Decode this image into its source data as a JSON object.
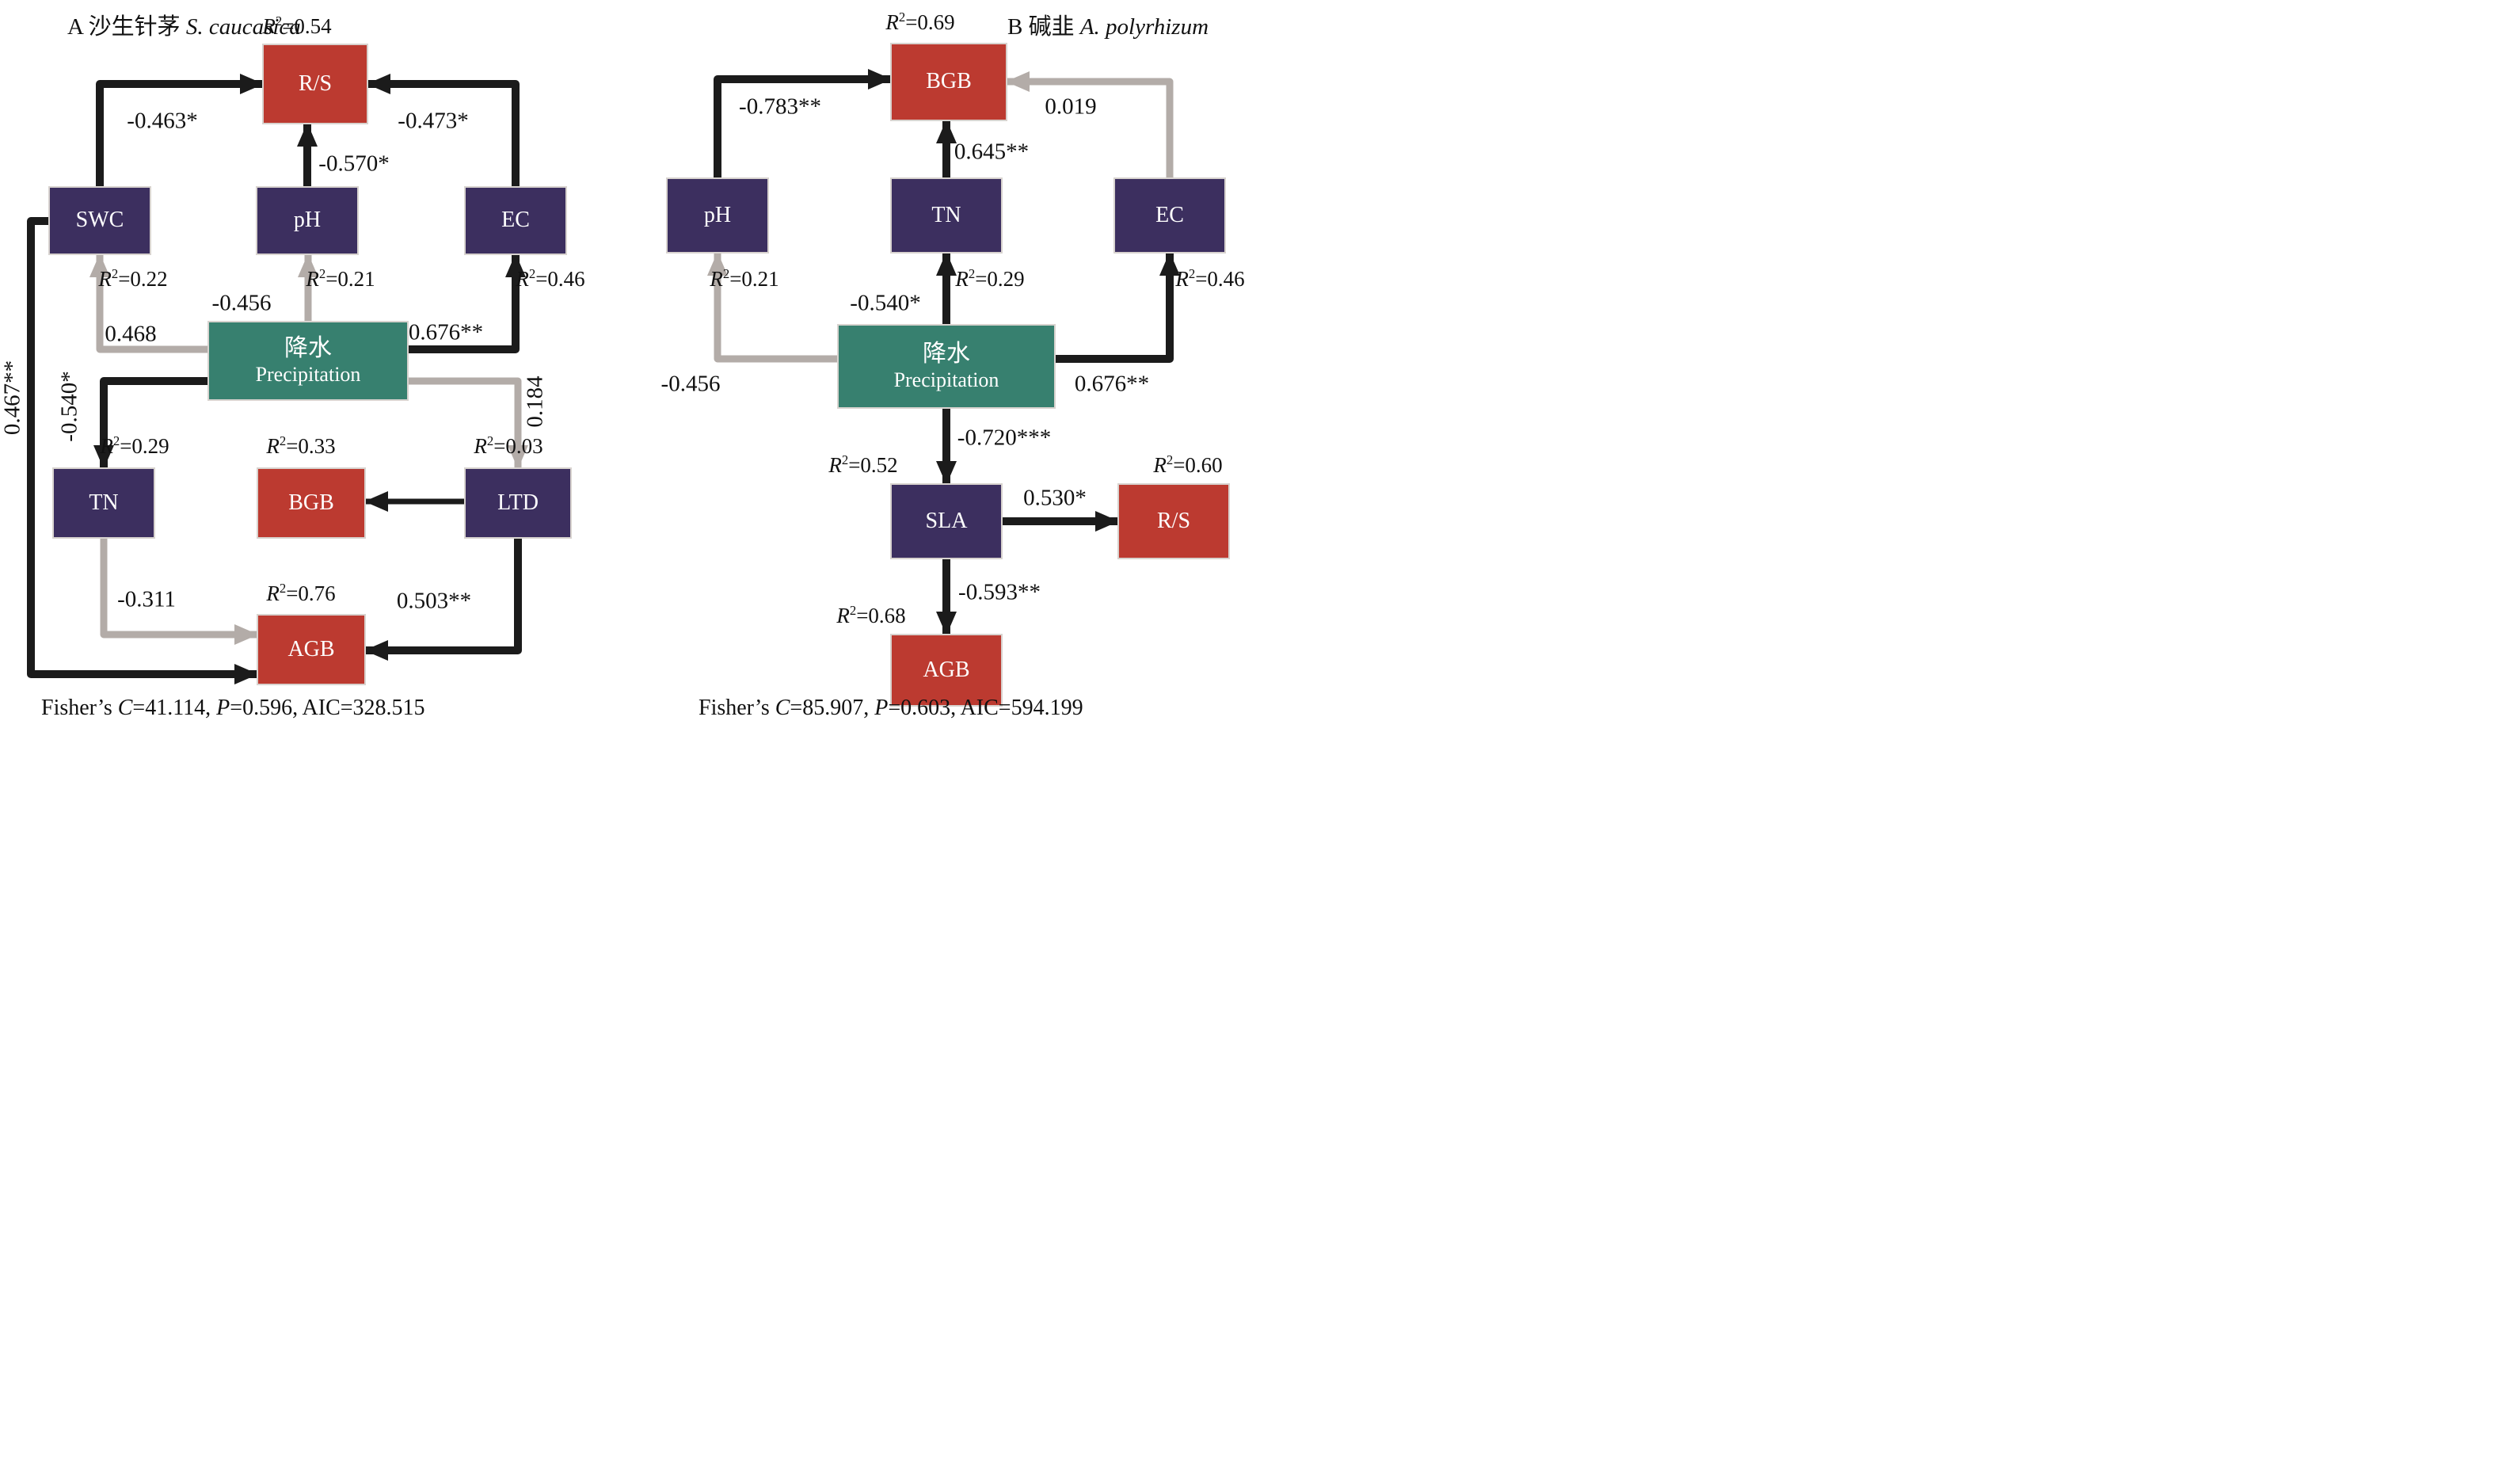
{
  "colors": {
    "node_red": "#bc3a30",
    "node_purple": "#3c2f5f",
    "node_green": "#37806f",
    "arrow_black": "#1b1b1b",
    "arrow_gray": "#b3aca8"
  },
  "a": {
    "title": [
      {
        "t": "A 沙生针茅 "
      },
      {
        "t": "S. caucasica",
        "i": true
      }
    ],
    "nodes": {
      "rs": {
        "label": "R/S",
        "r2": [
          {
            "t": "R",
            "i": true
          },
          {
            "t": "2",
            "s": true
          },
          {
            "t": "=0.54"
          }
        ]
      },
      "swc": {
        "label": "SWC",
        "r2": [
          {
            "t": "R",
            "i": true
          },
          {
            "t": "2",
            "s": true
          },
          {
            "t": "=0.22"
          }
        ]
      },
      "ph": {
        "label": "pH",
        "r2": [
          {
            "t": "R",
            "i": true
          },
          {
            "t": "2",
            "s": true
          },
          {
            "t": "=0.21"
          }
        ]
      },
      "ec": {
        "label": "EC",
        "r2": [
          {
            "t": "R",
            "i": true
          },
          {
            "t": "2",
            "s": true
          },
          {
            "t": "=0.46"
          }
        ]
      },
      "pre": {
        "label_zh": "降水",
        "label_en": "Precipitation"
      },
      "tn": {
        "label": "TN",
        "r2": [
          {
            "t": "R",
            "i": true
          },
          {
            "t": "2",
            "s": true
          },
          {
            "t": "=0.29"
          }
        ]
      },
      "bgb": {
        "label": "BGB",
        "r2": [
          {
            "t": "R",
            "i": true
          },
          {
            "t": "2",
            "s": true
          },
          {
            "t": "=0.33"
          }
        ]
      },
      "ltd": {
        "label": "LTD",
        "r2": [
          {
            "t": "R",
            "i": true
          },
          {
            "t": "2",
            "s": true
          },
          {
            "t": "=0.03"
          }
        ]
      },
      "agb": {
        "label": "AGB",
        "r2": [
          {
            "t": "R",
            "i": true
          },
          {
            "t": "2",
            "s": true
          },
          {
            "t": "=0.76"
          }
        ]
      }
    },
    "edges": {
      "swc_rs": "-0.463*",
      "ec_rs": "-0.473*",
      "ph_rs": "-0.570*",
      "pre_ph": "-0.456",
      "pre_swc": "0.468",
      "pre_ec": "0.676**",
      "pre_tn": "-0.540*",
      "pre_ltd": "0.184",
      "ltd_agb": "0.503**",
      "tn_agb": "-0.311",
      "swc_agb": "0.467**"
    },
    "fisher": [
      {
        "t": "Fisher’s "
      },
      {
        "t": "C",
        "i": true
      },
      {
        "t": "=41.114, "
      },
      {
        "t": "P",
        "i": true
      },
      {
        "t": "=0.596, AIC=328.515"
      }
    ]
  },
  "b": {
    "title": [
      {
        "t": "B 碱韭 "
      },
      {
        "t": "A. polyrhizum",
        "i": true
      }
    ],
    "nodes": {
      "bgb": {
        "label": "BGB",
        "r2": [
          {
            "t": "R",
            "i": true
          },
          {
            "t": "2",
            "s": true
          },
          {
            "t": "=0.69"
          }
        ]
      },
      "ph": {
        "label": "pH",
        "r2": [
          {
            "t": "R",
            "i": true
          },
          {
            "t": "2",
            "s": true
          },
          {
            "t": "=0.21"
          }
        ]
      },
      "tn": {
        "label": "TN",
        "r2": [
          {
            "t": "R",
            "i": true
          },
          {
            "t": "2",
            "s": true
          },
          {
            "t": "=0.29"
          }
        ]
      },
      "ec": {
        "label": "EC",
        "r2": [
          {
            "t": "R",
            "i": true
          },
          {
            "t": "2",
            "s": true
          },
          {
            "t": "=0.46"
          }
        ]
      },
      "pre": {
        "label_zh": "降水",
        "label_en": "Precipitation"
      },
      "sla": {
        "label": "SLA",
        "r2": [
          {
            "t": "R",
            "i": true
          },
          {
            "t": "2",
            "s": true
          },
          {
            "t": "=0.52"
          }
        ]
      },
      "rs": {
        "label": "R/S",
        "r2": [
          {
            "t": "R",
            "i": true
          },
          {
            "t": "2",
            "s": true
          },
          {
            "t": "=0.60"
          }
        ]
      },
      "agb": {
        "label": "AGB",
        "r2": [
          {
            "t": "R",
            "i": true
          },
          {
            "t": "2",
            "s": true
          },
          {
            "t": "=0.68"
          }
        ]
      }
    },
    "edges": {
      "ph_bgb": "-0.783**",
      "tn_bgb": "0.645**",
      "ec_bgb": "0.019",
      "pre_ph": "-0.456",
      "pre_tn": "-0.540*",
      "pre_ec": "0.676**",
      "pre_sla": "-0.720***",
      "sla_rs": "0.530*",
      "sla_agb": "-0.593**"
    },
    "fisher": [
      {
        "t": "Fisher’s "
      },
      {
        "t": "C",
        "i": true
      },
      {
        "t": "=85.907, "
      },
      {
        "t": "P",
        "i": true
      },
      {
        "t": "=0.603, AIC=594.199"
      }
    ]
  }
}
